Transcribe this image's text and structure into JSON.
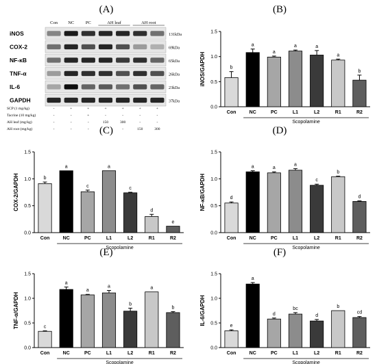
{
  "panel_labels": [
    "(A)",
    "(B)",
    "(C)",
    "(D)",
    "(E)",
    "(F)"
  ],
  "western_blot": {
    "lanes": [
      "Con",
      "NC",
      "PC",
      "AH leaf",
      "AH root"
    ],
    "proteins": [
      {
        "name": "iNOS",
        "kda": "131kDa"
      },
      {
        "name": "COX-2",
        "kda": "69kDa"
      },
      {
        "name": "NF-κB",
        "kda": "65kDa"
      },
      {
        "name": "TNF-α",
        "kda": "26kDa"
      },
      {
        "name": "IL-6",
        "kda": "23kDa"
      },
      {
        "name": "GAPDH",
        "kda": "37kDa"
      }
    ],
    "treatment_table": [
      {
        "label": "SCP (1 mg/kg)",
        "values": [
          "-",
          "+",
          "+",
          "+",
          "+",
          "+",
          "+"
        ]
      },
      {
        "label": "Tacrine (10 mg/kg)",
        "values": [
          "-",
          "-",
          "+",
          "-",
          "-",
          "-",
          "-"
        ]
      },
      {
        "label": "AH leaf (mg/kg)",
        "values": [
          "-",
          "-",
          "-",
          "150",
          "300",
          "-",
          "-"
        ]
      },
      {
        "label": "AH root (mg/kg)",
        "values": [
          "-",
          "-",
          "-",
          "-",
          "-",
          "150",
          "300"
        ]
      }
    ]
  },
  "chart_data": [
    {
      "panel": "(B)",
      "type": "bar",
      "ylabel": "iNOS/GAPDH",
      "ylim": [
        0,
        1.5
      ],
      "yticks": [
        "0.0",
        "0.5",
        "1.0",
        "1.5"
      ],
      "categories": [
        "Con",
        "NC",
        "PC",
        "L1",
        "L2",
        "R1",
        "R2"
      ],
      "values": [
        0.58,
        1.08,
        0.99,
        1.11,
        1.03,
        0.93,
        0.53
      ],
      "errors": [
        0.12,
        0.07,
        0.02,
        0.02,
        0.09,
        0.02,
        0.1
      ],
      "letters": [
        "b",
        "a",
        "a",
        "a",
        "a",
        "a",
        "b"
      ],
      "group_label": "Scopolamine"
    },
    {
      "panel": "(C)",
      "type": "bar",
      "ylabel": "COX-2/GAPDH",
      "ylim": [
        0,
        1.5
      ],
      "yticks": [
        "0.0",
        "0.5",
        "1.0",
        "1.5"
      ],
      "categories": [
        "Con",
        "NC",
        "PC",
        "L1",
        "L2",
        "R1",
        "R2"
      ],
      "values": [
        0.91,
        1.15,
        0.76,
        1.15,
        0.74,
        0.3,
        0.12
      ],
      "errors": [
        0.03,
        0.0,
        0.03,
        0.0,
        0.01,
        0.04,
        0.0
      ],
      "letters": [
        "b",
        "a",
        "c",
        "a",
        "c",
        "d",
        "e"
      ],
      "group_label": "Scopolamine"
    },
    {
      "panel": "(D)",
      "type": "bar",
      "ylabel": "NF-κB/GAPDH",
      "ylim": [
        0,
        1.5
      ],
      "yticks": [
        "0.0",
        "0.5",
        "1.0",
        "1.5"
      ],
      "categories": [
        "Con",
        "NC",
        "PC",
        "L1",
        "L2",
        "R1",
        "R2"
      ],
      "values": [
        0.55,
        1.13,
        1.11,
        1.16,
        0.88,
        1.04,
        0.58
      ],
      "errors": [
        0.02,
        0.02,
        0.02,
        0.03,
        0.02,
        0.01,
        0.01
      ],
      "letters": [
        "d",
        "a",
        "a",
        "a",
        "c",
        "b",
        "d"
      ],
      "group_label": "Scopolamine"
    },
    {
      "panel": "(E)",
      "type": "bar",
      "ylabel": "TNF-α/GAPDH",
      "ylim": [
        0,
        1.5
      ],
      "yticks": [
        "0.0",
        "0.5",
        "1.0",
        "1.5"
      ],
      "categories": [
        "Con",
        "NC",
        "PC",
        "L1",
        "L2",
        "R1",
        "R2"
      ],
      "values": [
        0.33,
        1.18,
        1.07,
        1.11,
        0.74,
        1.13,
        0.71
      ],
      "errors": [
        0.01,
        0.05,
        0.01,
        0.05,
        0.06,
        0.0,
        0.02
      ],
      "letters": [
        "c",
        "a",
        "a",
        "a",
        "b",
        "a",
        "b"
      ],
      "group_label": "Scopolamine"
    },
    {
      "panel": "(F)",
      "type": "bar",
      "ylabel": "IL-6/GAPDH",
      "ylim": [
        0,
        1.5
      ],
      "yticks": [
        "0.0",
        "0.5",
        "1.0",
        "1.5"
      ],
      "categories": [
        "Con",
        "NC",
        "PC",
        "L1",
        "L2",
        "R1",
        "R2"
      ],
      "values": [
        0.34,
        1.29,
        0.58,
        0.68,
        0.54,
        0.75,
        0.61
      ],
      "errors": [
        0.02,
        0.03,
        0.02,
        0.03,
        0.03,
        0.0,
        0.02
      ],
      "letters": [
        "e",
        "a",
        "d",
        "bc",
        "d",
        "b",
        "cd"
      ],
      "group_label": "Scopolamine"
    }
  ],
  "bar_colors": [
    "#d9d9d9",
    "#000000",
    "#a6a6a6",
    "#8c8c8c",
    "#3a3a3a",
    "#c8c8c8",
    "#5e5e5e"
  ]
}
